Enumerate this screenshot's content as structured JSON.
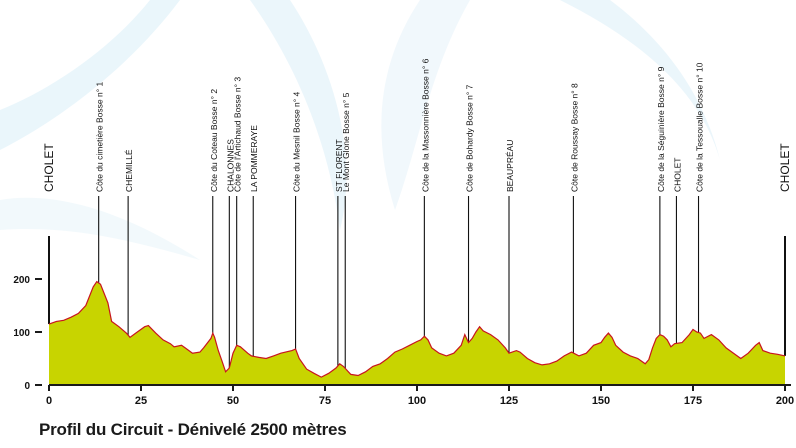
{
  "chart_data": {
    "type": "area",
    "title": "Profil du Circuit - Dénivelé 2500 mètres",
    "xlim": [
      0,
      200
    ],
    "ylim": [
      0,
      200
    ],
    "x_ticks": [
      {
        "value": 0,
        "label": "0"
      },
      {
        "value": 25,
        "label": "25"
      },
      {
        "value": 50,
        "label": "50"
      },
      {
        "value": 75,
        "label": "75"
      },
      {
        "value": 100,
        "label": "100"
      },
      {
        "value": 125,
        "label": "125"
      },
      {
        "value": 150,
        "label": "150"
      },
      {
        "value": 175,
        "label": "175"
      },
      {
        "value": 200,
        "label": "200"
      }
    ],
    "y_ticks": [
      {
        "value": 0,
        "label": "0"
      },
      {
        "value": 100,
        "label": "100"
      },
      {
        "value": 200,
        "label": "200"
      }
    ],
    "colors": {
      "fill": "#c8d400",
      "stroke": "#c8141e",
      "axis": "#1a1a1a"
    },
    "profile": [
      [
        0,
        115
      ],
      [
        2,
        120
      ],
      [
        4,
        122
      ],
      [
        6,
        128
      ],
      [
        8,
        135
      ],
      [
        10,
        150
      ],
      [
        12,
        185
      ],
      [
        13,
        195
      ],
      [
        14,
        190
      ],
      [
        16,
        155
      ],
      [
        17,
        120
      ],
      [
        19,
        110
      ],
      [
        21,
        98
      ],
      [
        22,
        90
      ],
      [
        24,
        100
      ],
      [
        26,
        110
      ],
      [
        27,
        112
      ],
      [
        29,
        98
      ],
      [
        31,
        85
      ],
      [
        33,
        78
      ],
      [
        34,
        72
      ],
      [
        36,
        75
      ],
      [
        37,
        70
      ],
      [
        39,
        60
      ],
      [
        41,
        62
      ],
      [
        42,
        70
      ],
      [
        44,
        88
      ],
      [
        44.5,
        98
      ],
      [
        45,
        90
      ],
      [
        46,
        65
      ],
      [
        47,
        45
      ],
      [
        48,
        25
      ],
      [
        49,
        32
      ],
      [
        50,
        60
      ],
      [
        51,
        75
      ],
      [
        52,
        72
      ],
      [
        54,
        60
      ],
      [
        55,
        55
      ],
      [
        57,
        52
      ],
      [
        59,
        50
      ],
      [
        61,
        55
      ],
      [
        63,
        60
      ],
      [
        66,
        65
      ],
      [
        67,
        68
      ],
      [
        68,
        50
      ],
      [
        70,
        30
      ],
      [
        72,
        22
      ],
      [
        74,
        15
      ],
      [
        76,
        22
      ],
      [
        78,
        32
      ],
      [
        79,
        40
      ],
      [
        80,
        35
      ],
      [
        82,
        20
      ],
      [
        84,
        18
      ],
      [
        86,
        25
      ],
      [
        88,
        35
      ],
      [
        90,
        40
      ],
      [
        92,
        50
      ],
      [
        94,
        62
      ],
      [
        96,
        68
      ],
      [
        98,
        75
      ],
      [
        100,
        82
      ],
      [
        101,
        85
      ],
      [
        102,
        92
      ],
      [
        103,
        85
      ],
      [
        104,
        70
      ],
      [
        106,
        60
      ],
      [
        108,
        55
      ],
      [
        110,
        60
      ],
      [
        112,
        75
      ],
      [
        113,
        95
      ],
      [
        114,
        80
      ],
      [
        115,
        88
      ],
      [
        116,
        100
      ],
      [
        117,
        110
      ],
      [
        118,
        102
      ],
      [
        120,
        95
      ],
      [
        122,
        85
      ],
      [
        124,
        70
      ],
      [
        125,
        60
      ],
      [
        127,
        65
      ],
      [
        128,
        62
      ],
      [
        130,
        50
      ],
      [
        132,
        42
      ],
      [
        134,
        38
      ],
      [
        136,
        40
      ],
      [
        138,
        45
      ],
      [
        140,
        55
      ],
      [
        142,
        62
      ],
      [
        144,
        55
      ],
      [
        146,
        60
      ],
      [
        148,
        75
      ],
      [
        150,
        80
      ],
      [
        151,
        90
      ],
      [
        152,
        98
      ],
      [
        153,
        90
      ],
      [
        154,
        75
      ],
      [
        156,
        62
      ],
      [
        158,
        55
      ],
      [
        160,
        50
      ],
      [
        162,
        40
      ],
      [
        163,
        48
      ],
      [
        164,
        70
      ],
      [
        165,
        88
      ],
      [
        166,
        95
      ],
      [
        167,
        92
      ],
      [
        168,
        85
      ],
      [
        169,
        72
      ],
      [
        170,
        78
      ],
      [
        172,
        80
      ],
      [
        174,
        95
      ],
      [
        175,
        105
      ],
      [
        176,
        100
      ],
      [
        177,
        98
      ],
      [
        178,
        88
      ],
      [
        180,
        95
      ],
      [
        182,
        85
      ],
      [
        184,
        70
      ],
      [
        186,
        60
      ],
      [
        188,
        50
      ],
      [
        190,
        60
      ],
      [
        192,
        75
      ],
      [
        193,
        80
      ],
      [
        194,
        65
      ],
      [
        196,
        60
      ],
      [
        198,
        58
      ],
      [
        200,
        55
      ]
    ],
    "markers": [
      {
        "km": 0,
        "label": "CHOLET",
        "major": true
      },
      {
        "km": 13.5,
        "label": "Côte du cimetière Bosse n° 1",
        "major": false
      },
      {
        "km": 21.5,
        "label": "CHEMILLÉ",
        "major": false
      },
      {
        "km": 44.5,
        "label": "Côte du Coteau Bosse n° 2",
        "major": false
      },
      {
        "km": 49,
        "label": "CHALONNES",
        "major": false
      },
      {
        "km": 51,
        "label": "Côte de l'Artichaud Bosse n° 3",
        "major": false
      },
      {
        "km": 55.5,
        "label": "LA POMMERAYE",
        "major": false
      },
      {
        "km": 67,
        "label": "Côte du Mesnil Bosse n° 4",
        "major": false
      },
      {
        "km": 78.5,
        "label": "ST FLORENT",
        "major": false
      },
      {
        "km": 80.5,
        "label": "Le Mont Glone Bosse n° 5",
        "major": false
      },
      {
        "km": 102,
        "label": "Côte de la Massonnière Bosse n° 6",
        "major": false
      },
      {
        "km": 114,
        "label": "Côte de Bohardy Bosse n° 7",
        "major": false
      },
      {
        "km": 125,
        "label": "BEAUPRÉAU",
        "major": false
      },
      {
        "km": 142.5,
        "label": "Côte de Roussay Bosse n° 8",
        "major": false
      },
      {
        "km": 166,
        "label": "Côte de la Séguinière Bosse n° 9",
        "major": false
      },
      {
        "km": 170.5,
        "label": "CHOLET",
        "major": false
      },
      {
        "km": 176.5,
        "label": "Côte de la Tessoualle Bosse n° 10",
        "major": false
      },
      {
        "km": 200,
        "label": "CHOLET",
        "major": true
      }
    ]
  }
}
